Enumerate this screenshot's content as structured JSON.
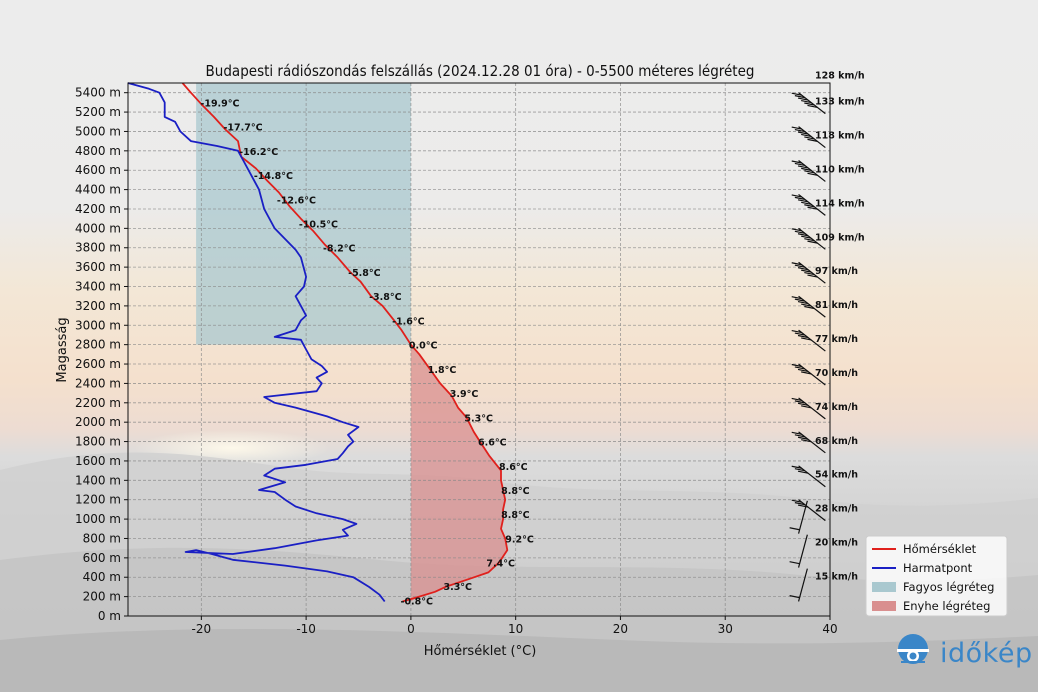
{
  "chart_data": {
    "type": "line",
    "title": "Budapesti rádiószondás felszállás (2024.12.28 01 óra) - 0-5500 méteres légréteg",
    "xlabel": "Hőmérséklet (°C)",
    "ylabel": "Magasság",
    "xlim": [
      -27,
      40
    ],
    "ylim": [
      0,
      5500
    ],
    "xticks": [
      -20,
      -10,
      0,
      10,
      20,
      30,
      40
    ],
    "yticks": [
      0,
      200,
      400,
      600,
      800,
      1000,
      1200,
      1400,
      1600,
      1800,
      2000,
      2200,
      2400,
      2600,
      2800,
      3000,
      3200,
      3400,
      3600,
      3800,
      4000,
      4200,
      4400,
      4600,
      4800,
      5000,
      5200,
      5400
    ],
    "ytick_suffix": " m",
    "grid": true,
    "legend_position": "bottom-right",
    "legend": [
      {
        "label": "Hőmérséklet",
        "kind": "line",
        "color": "#e0201c"
      },
      {
        "label": "Harmatpont",
        "kind": "line",
        "color": "#1a1fc4"
      },
      {
        "label": "Fagyos légréteg",
        "kind": "patch",
        "color": "#a9c8cf"
      },
      {
        "label": "Enyhe légréteg",
        "kind": "patch",
        "color": "#d98f8f"
      }
    ],
    "series": [
      {
        "name": "Hőmérséklet",
        "color": "#e0201c",
        "x": [
          -0.8,
          0.8,
          2.3,
          3.3,
          5.5,
          7.4,
          8.4,
          9.2,
          9.0,
          8.6,
          8.8,
          8.8,
          9.0,
          8.8,
          8.6,
          8.6,
          7.5,
          6.6,
          6.0,
          5.3,
          4.5,
          3.9,
          2.8,
          1.8,
          0.8,
          0.0,
          -0.9,
          -1.6,
          -2.7,
          -3.8,
          -4.8,
          -5.8,
          -7.0,
          -8.2,
          -9.3,
          -10.5,
          -11.6,
          -12.6,
          -13.7,
          -14.8,
          -16.2,
          -16.5,
          -17.7,
          -18.8,
          -19.9,
          -21.0,
          -21.8
        ],
        "y": [
          150,
          200,
          250,
          300,
          380,
          450,
          550,
          680,
          800,
          900,
          1000,
          1100,
          1200,
          1300,
          1400,
          1500,
          1650,
          1800,
          1900,
          2050,
          2150,
          2270,
          2400,
          2550,
          2700,
          2800,
          2950,
          3050,
          3200,
          3300,
          3450,
          3550,
          3700,
          3830,
          3970,
          4100,
          4230,
          4370,
          4490,
          4620,
          4740,
          4900,
          5020,
          5150,
          5270,
          5400,
          5500
        ]
      },
      {
        "name": "Harmatpont",
        "color": "#1a1fc4",
        "x": [
          -2.5,
          -3.0,
          -4.0,
          -5.5,
          -8.0,
          -12.0,
          -17.0,
          -19.0,
          -20.5,
          -21.5,
          -17.0,
          -13.0,
          -9.0,
          -6.0,
          -6.5,
          -5.2,
          -6.5,
          -9.0,
          -11.0,
          -12.0,
          -13.0,
          -14.5,
          -12.0,
          -14.0,
          -13.0,
          -10.0,
          -8.5,
          -7.0,
          -6.5,
          -6.0,
          -5.5,
          -6.0,
          -5.0,
          -6.5,
          -8.0,
          -11.0,
          -13.0,
          -14.0,
          -9.0,
          -8.5,
          -9.0,
          -8.0,
          -8.5,
          -9.5,
          -10.0,
          -10.5,
          -13.0,
          -11.0,
          -10.5,
          -10.0,
          -10.5,
          -11.0,
          -10.2,
          -10.0,
          -10.3,
          -10.5,
          -11.0,
          -13.0,
          -14.0,
          -14.5,
          -16.0,
          -16.5,
          -18.5,
          -21.0,
          -22.0,
          -22.5,
          -23.5,
          -23.5,
          -24.0,
          -25.0,
          -27.0
        ],
        "y": [
          150,
          220,
          300,
          400,
          460,
          520,
          580,
          640,
          680,
          660,
          640,
          700,
          780,
          830,
          890,
          950,
          1000,
          1060,
          1130,
          1200,
          1280,
          1300,
          1380,
          1450,
          1520,
          1560,
          1590,
          1620,
          1680,
          1750,
          1800,
          1870,
          1950,
          2000,
          2060,
          2150,
          2200,
          2260,
          2320,
          2400,
          2460,
          2520,
          2580,
          2650,
          2750,
          2850,
          2880,
          2950,
          3050,
          3100,
          3200,
          3300,
          3400,
          3500,
          3620,
          3700,
          3780,
          4000,
          4200,
          4400,
          4700,
          4800,
          4850,
          4900,
          5000,
          5100,
          5150,
          5300,
          5400,
          5440,
          5500
        ]
      }
    ],
    "temperature_labels": [
      {
        "y": 150,
        "x": -0.8,
        "text": "-0.8°C"
      },
      {
        "y": 300,
        "x": 3.3,
        "text": "3.3°C"
      },
      {
        "y": 540,
        "x": 7.4,
        "text": "7.4°C"
      },
      {
        "y": 790,
        "x": 9.2,
        "text": "9.2°C"
      },
      {
        "y": 1040,
        "x": 8.8,
        "text": "8.8°C"
      },
      {
        "y": 1290,
        "x": 8.8,
        "text": "8.8°C"
      },
      {
        "y": 1540,
        "x": 8.6,
        "text": "8.6°C"
      },
      {
        "y": 1790,
        "x": 6.6,
        "text": "6.6°C"
      },
      {
        "y": 2040,
        "x": 5.3,
        "text": "5.3°C"
      },
      {
        "y": 2290,
        "x": 3.9,
        "text": "3.9°C"
      },
      {
        "y": 2540,
        "x": 1.8,
        "text": "1.8°C"
      },
      {
        "y": 2790,
        "x": 0.0,
        "text": "0.0°C"
      },
      {
        "y": 3040,
        "x": -1.6,
        "text": "-1.6°C"
      },
      {
        "y": 3290,
        "x": -3.8,
        "text": "-3.8°C"
      },
      {
        "y": 3540,
        "x": -5.8,
        "text": "-5.8°C"
      },
      {
        "y": 3790,
        "x": -8.2,
        "text": "-8.2°C"
      },
      {
        "y": 4040,
        "x": -10.5,
        "text": "-10.5°C"
      },
      {
        "y": 4290,
        "x": -12.6,
        "text": "-12.6°C"
      },
      {
        "y": 4540,
        "x": -14.8,
        "text": "-14.8°C"
      },
      {
        "y": 4790,
        "x": -16.2,
        "text": "-16.2°C"
      },
      {
        "y": 5040,
        "x": -17.7,
        "text": "-17.7°C"
      },
      {
        "y": 5290,
        "x": -19.9,
        "text": "-19.9°C"
      }
    ],
    "wind": [
      {
        "y": 150,
        "speed_kmh": 15,
        "label": "15 km/h"
      },
      {
        "y": 500,
        "speed_kmh": 20,
        "label": "20 km/h"
      },
      {
        "y": 850,
        "speed_kmh": 28,
        "label": "28 km/h"
      },
      {
        "y": 1200,
        "speed_kmh": 54,
        "label": "54 km/h"
      },
      {
        "y": 1550,
        "speed_kmh": 68,
        "label": "68 km/h"
      },
      {
        "y": 1900,
        "speed_kmh": 74,
        "label": "74 km/h"
      },
      {
        "y": 2250,
        "speed_kmh": 70,
        "label": "70 km/h"
      },
      {
        "y": 2600,
        "speed_kmh": 77,
        "label": "77 km/h"
      },
      {
        "y": 2950,
        "speed_kmh": 81,
        "label": "81 km/h"
      },
      {
        "y": 3300,
        "speed_kmh": 97,
        "label": "97 km/h"
      },
      {
        "y": 3650,
        "speed_kmh": 109,
        "label": "109 km/h"
      },
      {
        "y": 4000,
        "speed_kmh": 114,
        "label": "114 km/h"
      },
      {
        "y": 4350,
        "speed_kmh": 110,
        "label": "110 km/h"
      },
      {
        "y": 4700,
        "speed_kmh": 118,
        "label": "118 km/h"
      },
      {
        "y": 5050,
        "speed_kmh": 133,
        "label": "133 km/h"
      },
      {
        "y": 5400,
        "speed_kmh": 128,
        "label": "128 km/h"
      }
    ]
  },
  "brand": {
    "name": "időkép",
    "color": "#3a86c8"
  }
}
